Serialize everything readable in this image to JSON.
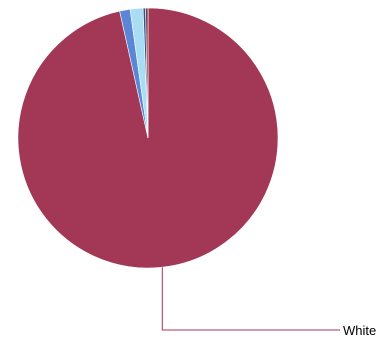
{
  "chart_data": {
    "type": "pie",
    "slices": [
      {
        "label": "White",
        "value": 96.5,
        "color": "#a33756"
      },
      {
        "label": "",
        "value": 1.3,
        "color": "#5b86d6"
      },
      {
        "label": "",
        "value": 1.6,
        "color": "#a9ddf3"
      },
      {
        "label": "",
        "value": 0.3,
        "color": "#3d4f8a"
      },
      {
        "label": "",
        "value": 0.3,
        "color": "#7a3a4a"
      }
    ],
    "visible_labels": [
      "White"
    ],
    "start_angle_deg": 0,
    "direction": "clockwise",
    "legend": "none"
  }
}
